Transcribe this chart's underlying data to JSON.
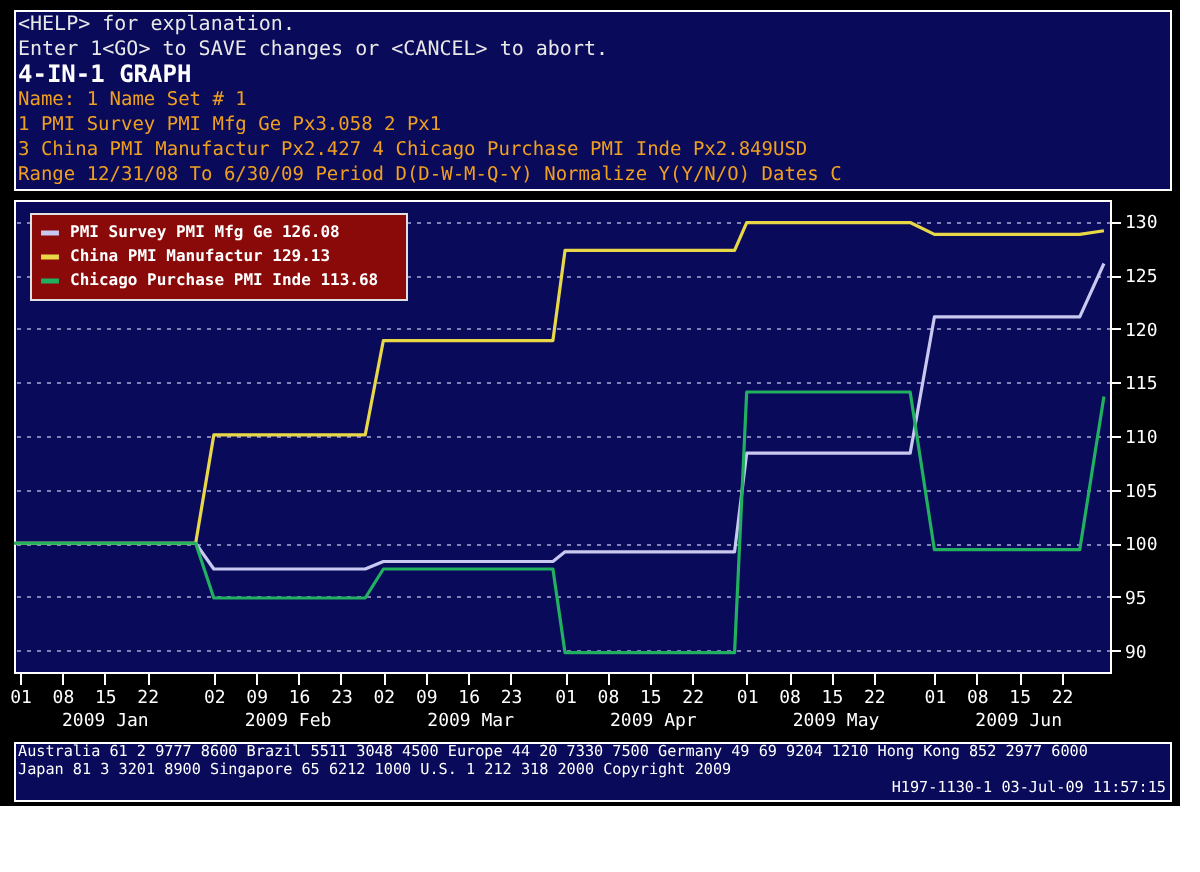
{
  "chart_data": {
    "type": "line",
    "title": "4-IN-1 GRAPH",
    "subtitle": [
      "Name:                    1 Name      Set # 1",
      "1 PMI Survey  PMI Mfg Ge  Px3.058      2                 Px1",
      "3 China PMI  Manufactur  Px2.427      4 Chicago Purchase PMI Inde Px2.849USD",
      "Range 12/31/08 To 6/30/09  Period D(D-W-M-Q-Y)  Normalize Y(Y/N/O)  Dates C"
    ],
    "series": [
      {
        "name": "PMI Survey  PMI Mfg Ge   126.08",
        "color": "#c8c8f0",
        "x": [
          "2008-12-31",
          "2009-01-30",
          "2009-02-02",
          "2009-02-27",
          "2009-03-02",
          "2009-03-30",
          "2009-04-01",
          "2009-04-29",
          "2009-05-01",
          "2009-05-28",
          "2009-06-01",
          "2009-06-25",
          "2009-06-29"
        ],
        "values": [
          100,
          100,
          97.6,
          97.6,
          98.3,
          98.3,
          99.2,
          99.2,
          108.4,
          108.4,
          121.1,
          121.1,
          126.08
        ]
      },
      {
        "name": "China PMI  Manufactur   129.13",
        "color": "#e8d848",
        "x": [
          "2008-12-31",
          "2009-01-30",
          "2009-02-02",
          "2009-02-27",
          "2009-03-02",
          "2009-03-30",
          "2009-04-01",
          "2009-04-29",
          "2009-05-01",
          "2009-05-28",
          "2009-06-01",
          "2009-06-25",
          "2009-06-29"
        ],
        "values": [
          100,
          100,
          110.1,
          110.1,
          118.9,
          118.9,
          127.3,
          127.3,
          129.9,
          129.9,
          128.8,
          128.8,
          129.13
        ]
      },
      {
        "name": "Chicago Purchase PMI Inde   113.68",
        "color": "#20b060",
        "x": [
          "2008-12-31",
          "2009-01-30",
          "2009-02-02",
          "2009-02-27",
          "2009-03-02",
          "2009-03-30",
          "2009-04-01",
          "2009-04-29",
          "2009-05-01",
          "2009-05-28",
          "2009-06-01",
          "2009-06-25",
          "2009-06-29"
        ],
        "values": [
          100,
          100,
          94.9,
          94.9,
          97.6,
          97.6,
          89.8,
          89.8,
          114.1,
          114.1,
          99.4,
          99.4,
          113.68
        ]
      }
    ],
    "xlim": [
      "2008-12-31",
      "2009-06-30"
    ],
    "xticks": [
      {
        "value": "2009-01-01",
        "label": "01"
      },
      {
        "value": "2009-01-08",
        "label": "08"
      },
      {
        "value": "2009-01-15",
        "label": "15"
      },
      {
        "value": "2009-01-22",
        "label": "22"
      },
      {
        "value": "2009-02-02",
        "label": "02"
      },
      {
        "value": "2009-02-09",
        "label": "09"
      },
      {
        "value": "2009-02-16",
        "label": "16"
      },
      {
        "value": "2009-02-23",
        "label": "23"
      },
      {
        "value": "2009-03-02",
        "label": "02"
      },
      {
        "value": "2009-03-09",
        "label": "09"
      },
      {
        "value": "2009-03-16",
        "label": "16"
      },
      {
        "value": "2009-03-23",
        "label": "23"
      },
      {
        "value": "2009-04-01",
        "label": "01"
      },
      {
        "value": "2009-04-08",
        "label": "08"
      },
      {
        "value": "2009-04-15",
        "label": "15"
      },
      {
        "value": "2009-04-22",
        "label": "22"
      },
      {
        "value": "2009-05-01",
        "label": "01"
      },
      {
        "value": "2009-05-08",
        "label": "08"
      },
      {
        "value": "2009-05-15",
        "label": "15"
      },
      {
        "value": "2009-05-22",
        "label": "22"
      },
      {
        "value": "2009-06-01",
        "label": "01"
      },
      {
        "value": "2009-06-08",
        "label": "08"
      },
      {
        "value": "2009-06-15",
        "label": "15"
      },
      {
        "value": "2009-06-22",
        "label": "22"
      }
    ],
    "ylim": [
      88,
      132
    ],
    "yticks": [
      90,
      95,
      100,
      105,
      110,
      115,
      120,
      125,
      130
    ],
    "grid": "y",
    "legend": "top left",
    "marker": "none",
    "line_style": "solid",
    "annotations": [
      "<HELP> for explanation.",
      "Enter 1<GO> to SAVE changes or <CANCEL> to abort.",
      "2009 Jan",
      "2009 Feb",
      "2009 Mar",
      "2009 Apr",
      "2009 May",
      "2009 Jun",
      "Australia 61 2 9777 8600 Brazil 5511 3048 4500 Europe 44 20 7330 7500 Germany 49 69 9204 1210 Hong Kong 852 2977 6000",
      "Japan 81 3 3201 8900     Singapore 65 6212 1000     U.S. 1 212 318 2000     Copyright 2009",
      "H197-1130-1 03-Jul-09 11:57:15"
    ]
  }
}
